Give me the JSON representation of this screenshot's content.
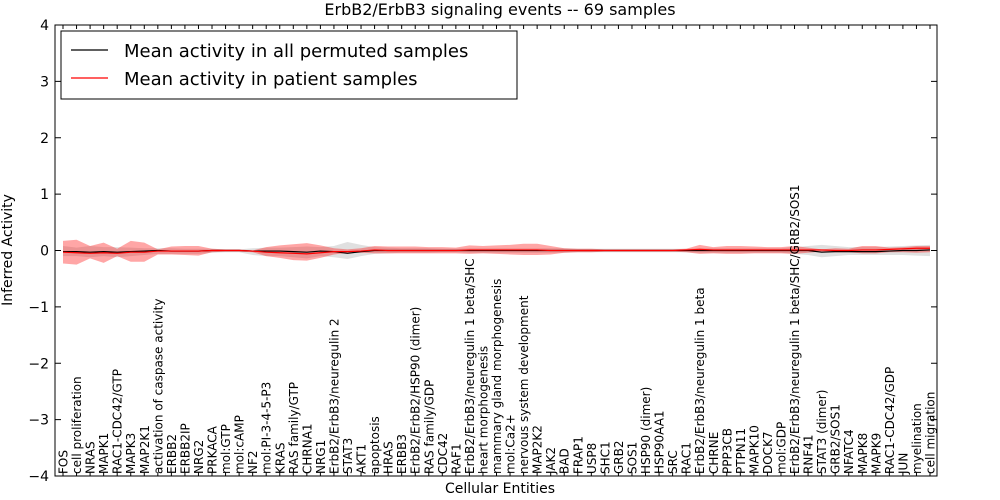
{
  "chart_data": {
    "type": "line",
    "title": "ErbB2/ErbB3 signaling events -- 69 samples",
    "xlabel": "Cellular Entities",
    "ylabel": "Inferred Activity",
    "ylim": [
      -4,
      4
    ],
    "yticks": [
      -4,
      -3,
      -2,
      -1,
      0,
      1,
      2,
      3,
      4
    ],
    "legend_position": "top-left",
    "categories": [
      "FOS",
      "cell proliferation",
      "NRAS",
      "MAPK1",
      "RAC1-CDC42/GTP",
      "MAPK3",
      "MAP2K1",
      "activation of caspase activity",
      "ERBB2",
      "ERBB2IP",
      "NRG2",
      "PRKACA",
      "mol:GTP",
      "mol:cAMP",
      "NF2",
      "mol:PI-3-4-5-P3",
      "KRAS",
      "RAS family/GTP",
      "CHRNA1",
      "NRG1",
      "ErbB2/ErbB3/neuregulin 2",
      "STAT3",
      "AKT1",
      "apoptosis",
      "HRAS",
      "ERBB3",
      "ErbB2/ErbB2/HSP90 (dimer)",
      "RAS family/GDP",
      "CDC42",
      "RAF1",
      "ErbB2/ErbB3/neuregulin 1 beta/SHC",
      "heart morphogenesis",
      "mammary gland morphogenesis",
      "mol:Ca2+",
      "nervous system development",
      "MAP2K2",
      "JAK2",
      "BAD",
      "FRAP1",
      "USP8",
      "SHC1",
      "GRB2",
      "SOS1",
      "HSP90 (dimer)",
      "HSP90AA1",
      "SRC",
      "RAC1",
      "ErbB2/ErbB3/neuregulin 1 beta",
      "CHRNE",
      "PPP3CB",
      "PTPN11",
      "MAPK10",
      "DOCK7",
      "mol:GDP",
      "ErbB2/ErbB3/neuregulin 1 beta/SHC/GRB2/SOS1",
      "RNF41",
      "STAT3 (dimer)",
      "GRB2/SOS1",
      "NFATC4",
      "MAPK8",
      "MAPK9",
      "RAC1-CDC42/GDP",
      "JUN",
      "myelination",
      "cell migration"
    ],
    "series": [
      {
        "name": "Mean activity in all permuted samples",
        "color": "#000000",
        "values": [
          -0.02,
          -0.02,
          -0.03,
          -0.02,
          -0.03,
          -0.02,
          -0.01,
          0.0,
          -0.01,
          -0.01,
          -0.01,
          0.0,
          0.0,
          0.0,
          -0.01,
          -0.01,
          -0.01,
          -0.02,
          -0.03,
          -0.01,
          -0.02,
          -0.05,
          -0.02,
          0.0,
          0.0,
          0.0,
          0.0,
          0.0,
          0.0,
          0.0,
          0.0,
          0.0,
          0.0,
          0.0,
          0.0,
          0.0,
          0.0,
          0.0,
          0.0,
          0.0,
          0.0,
          0.0,
          0.0,
          0.0,
          0.0,
          0.0,
          0.0,
          0.0,
          0.0,
          0.0,
          0.0,
          0.0,
          0.0,
          0.0,
          0.0,
          0.0,
          -0.03,
          -0.02,
          -0.02,
          -0.02,
          -0.02,
          -0.01,
          0.0,
          0.0,
          0.01
        ]
      },
      {
        "name": "Mean activity in patient samples",
        "color": "#ff0000",
        "values": [
          -0.03,
          -0.04,
          -0.05,
          -0.04,
          -0.05,
          -0.03,
          -0.03,
          -0.01,
          -0.01,
          -0.01,
          -0.01,
          0.0,
          0.0,
          0.0,
          -0.01,
          -0.03,
          -0.04,
          -0.05,
          -0.06,
          -0.04,
          -0.02,
          -0.02,
          -0.01,
          0.01,
          0.0,
          0.0,
          0.0,
          0.0,
          0.0,
          0.0,
          0.01,
          0.01,
          0.01,
          0.01,
          0.01,
          0.01,
          0.0,
          0.0,
          0.0,
          0.0,
          0.0,
          0.0,
          0.0,
          0.0,
          0.0,
          0.0,
          0.01,
          0.02,
          0.01,
          0.01,
          0.01,
          0.01,
          0.01,
          0.01,
          0.01,
          0.01,
          0.01,
          0.0,
          0.0,
          0.01,
          0.01,
          0.02,
          0.03,
          0.04,
          0.04
        ]
      }
    ],
    "permuted_band": {
      "color": "#d3d3d3",
      "upper": [
        0.08,
        0.05,
        0.08,
        0.06,
        0.06,
        0.05,
        0.04,
        0.04,
        0.04,
        0.03,
        0.03,
        0.03,
        0.02,
        0.02,
        0.04,
        0.05,
        0.05,
        0.06,
        0.07,
        0.06,
        0.08,
        0.15,
        0.1,
        0.06,
        0.05,
        0.04,
        0.04,
        0.04,
        0.03,
        0.03,
        0.04,
        0.04,
        0.04,
        0.04,
        0.04,
        0.04,
        0.04,
        0.04,
        0.03,
        0.03,
        0.03,
        0.03,
        0.03,
        0.03,
        0.03,
        0.03,
        0.03,
        0.04,
        0.04,
        0.04,
        0.04,
        0.04,
        0.04,
        0.04,
        0.06,
        0.08,
        0.1,
        0.08,
        0.06,
        0.06,
        0.06,
        0.07,
        0.08,
        0.09,
        0.1
      ],
      "lower": [
        -0.1,
        -0.1,
        -0.12,
        -0.1,
        -0.12,
        -0.1,
        -0.08,
        -0.06,
        -0.06,
        -0.06,
        -0.06,
        -0.04,
        -0.03,
        -0.03,
        -0.08,
        -0.1,
        -0.1,
        -0.12,
        -0.14,
        -0.1,
        -0.12,
        -0.15,
        -0.1,
        -0.06,
        -0.05,
        -0.04,
        -0.04,
        -0.04,
        -0.03,
        -0.03,
        -0.04,
        -0.04,
        -0.04,
        -0.04,
        -0.04,
        -0.04,
        -0.04,
        -0.04,
        -0.03,
        -0.03,
        -0.03,
        -0.03,
        -0.03,
        -0.03,
        -0.03,
        -0.03,
        -0.03,
        -0.04,
        -0.04,
        -0.04,
        -0.04,
        -0.04,
        -0.04,
        -0.04,
        -0.06,
        -0.08,
        -0.12,
        -0.1,
        -0.08,
        -0.08,
        -0.08,
        -0.08,
        -0.08,
        -0.09,
        -0.1
      ]
    },
    "patient_band": {
      "color": "#ff0000",
      "upper": [
        0.17,
        0.19,
        0.08,
        0.14,
        0.03,
        0.17,
        0.14,
        0.02,
        0.07,
        0.08,
        0.08,
        0.03,
        0.02,
        0.02,
        0.0,
        0.06,
        0.09,
        0.11,
        0.13,
        0.09,
        0.04,
        0.02,
        0.04,
        0.08,
        0.07,
        0.07,
        0.07,
        0.06,
        0.06,
        0.05,
        0.09,
        0.08,
        0.09,
        0.1,
        0.12,
        0.12,
        0.08,
        0.04,
        0.03,
        0.03,
        0.02,
        0.02,
        0.02,
        0.02,
        0.02,
        0.02,
        0.03,
        0.1,
        0.06,
        0.08,
        0.08,
        0.07,
        0.06,
        0.06,
        0.08,
        0.05,
        0.02,
        0.04,
        0.03,
        0.08,
        0.08,
        0.05,
        0.06,
        0.08,
        0.08
      ],
      "lower": [
        -0.23,
        -0.25,
        -0.14,
        -0.22,
        -0.1,
        -0.2,
        -0.2,
        -0.07,
        -0.07,
        -0.08,
        -0.09,
        -0.03,
        -0.02,
        -0.02,
        -0.03,
        -0.1,
        -0.13,
        -0.17,
        -0.18,
        -0.13,
        -0.07,
        -0.04,
        -0.04,
        -0.05,
        -0.05,
        -0.05,
        -0.05,
        -0.05,
        -0.05,
        -0.05,
        -0.06,
        -0.05,
        -0.06,
        -0.07,
        -0.08,
        -0.08,
        -0.07,
        -0.04,
        -0.03,
        -0.03,
        -0.02,
        -0.02,
        -0.02,
        -0.02,
        -0.02,
        -0.02,
        -0.03,
        -0.06,
        -0.05,
        -0.06,
        -0.06,
        -0.05,
        -0.05,
        -0.05,
        -0.06,
        -0.04,
        -0.02,
        -0.03,
        -0.03,
        -0.05,
        -0.05,
        -0.03,
        -0.03,
        -0.04,
        -0.03
      ]
    }
  }
}
